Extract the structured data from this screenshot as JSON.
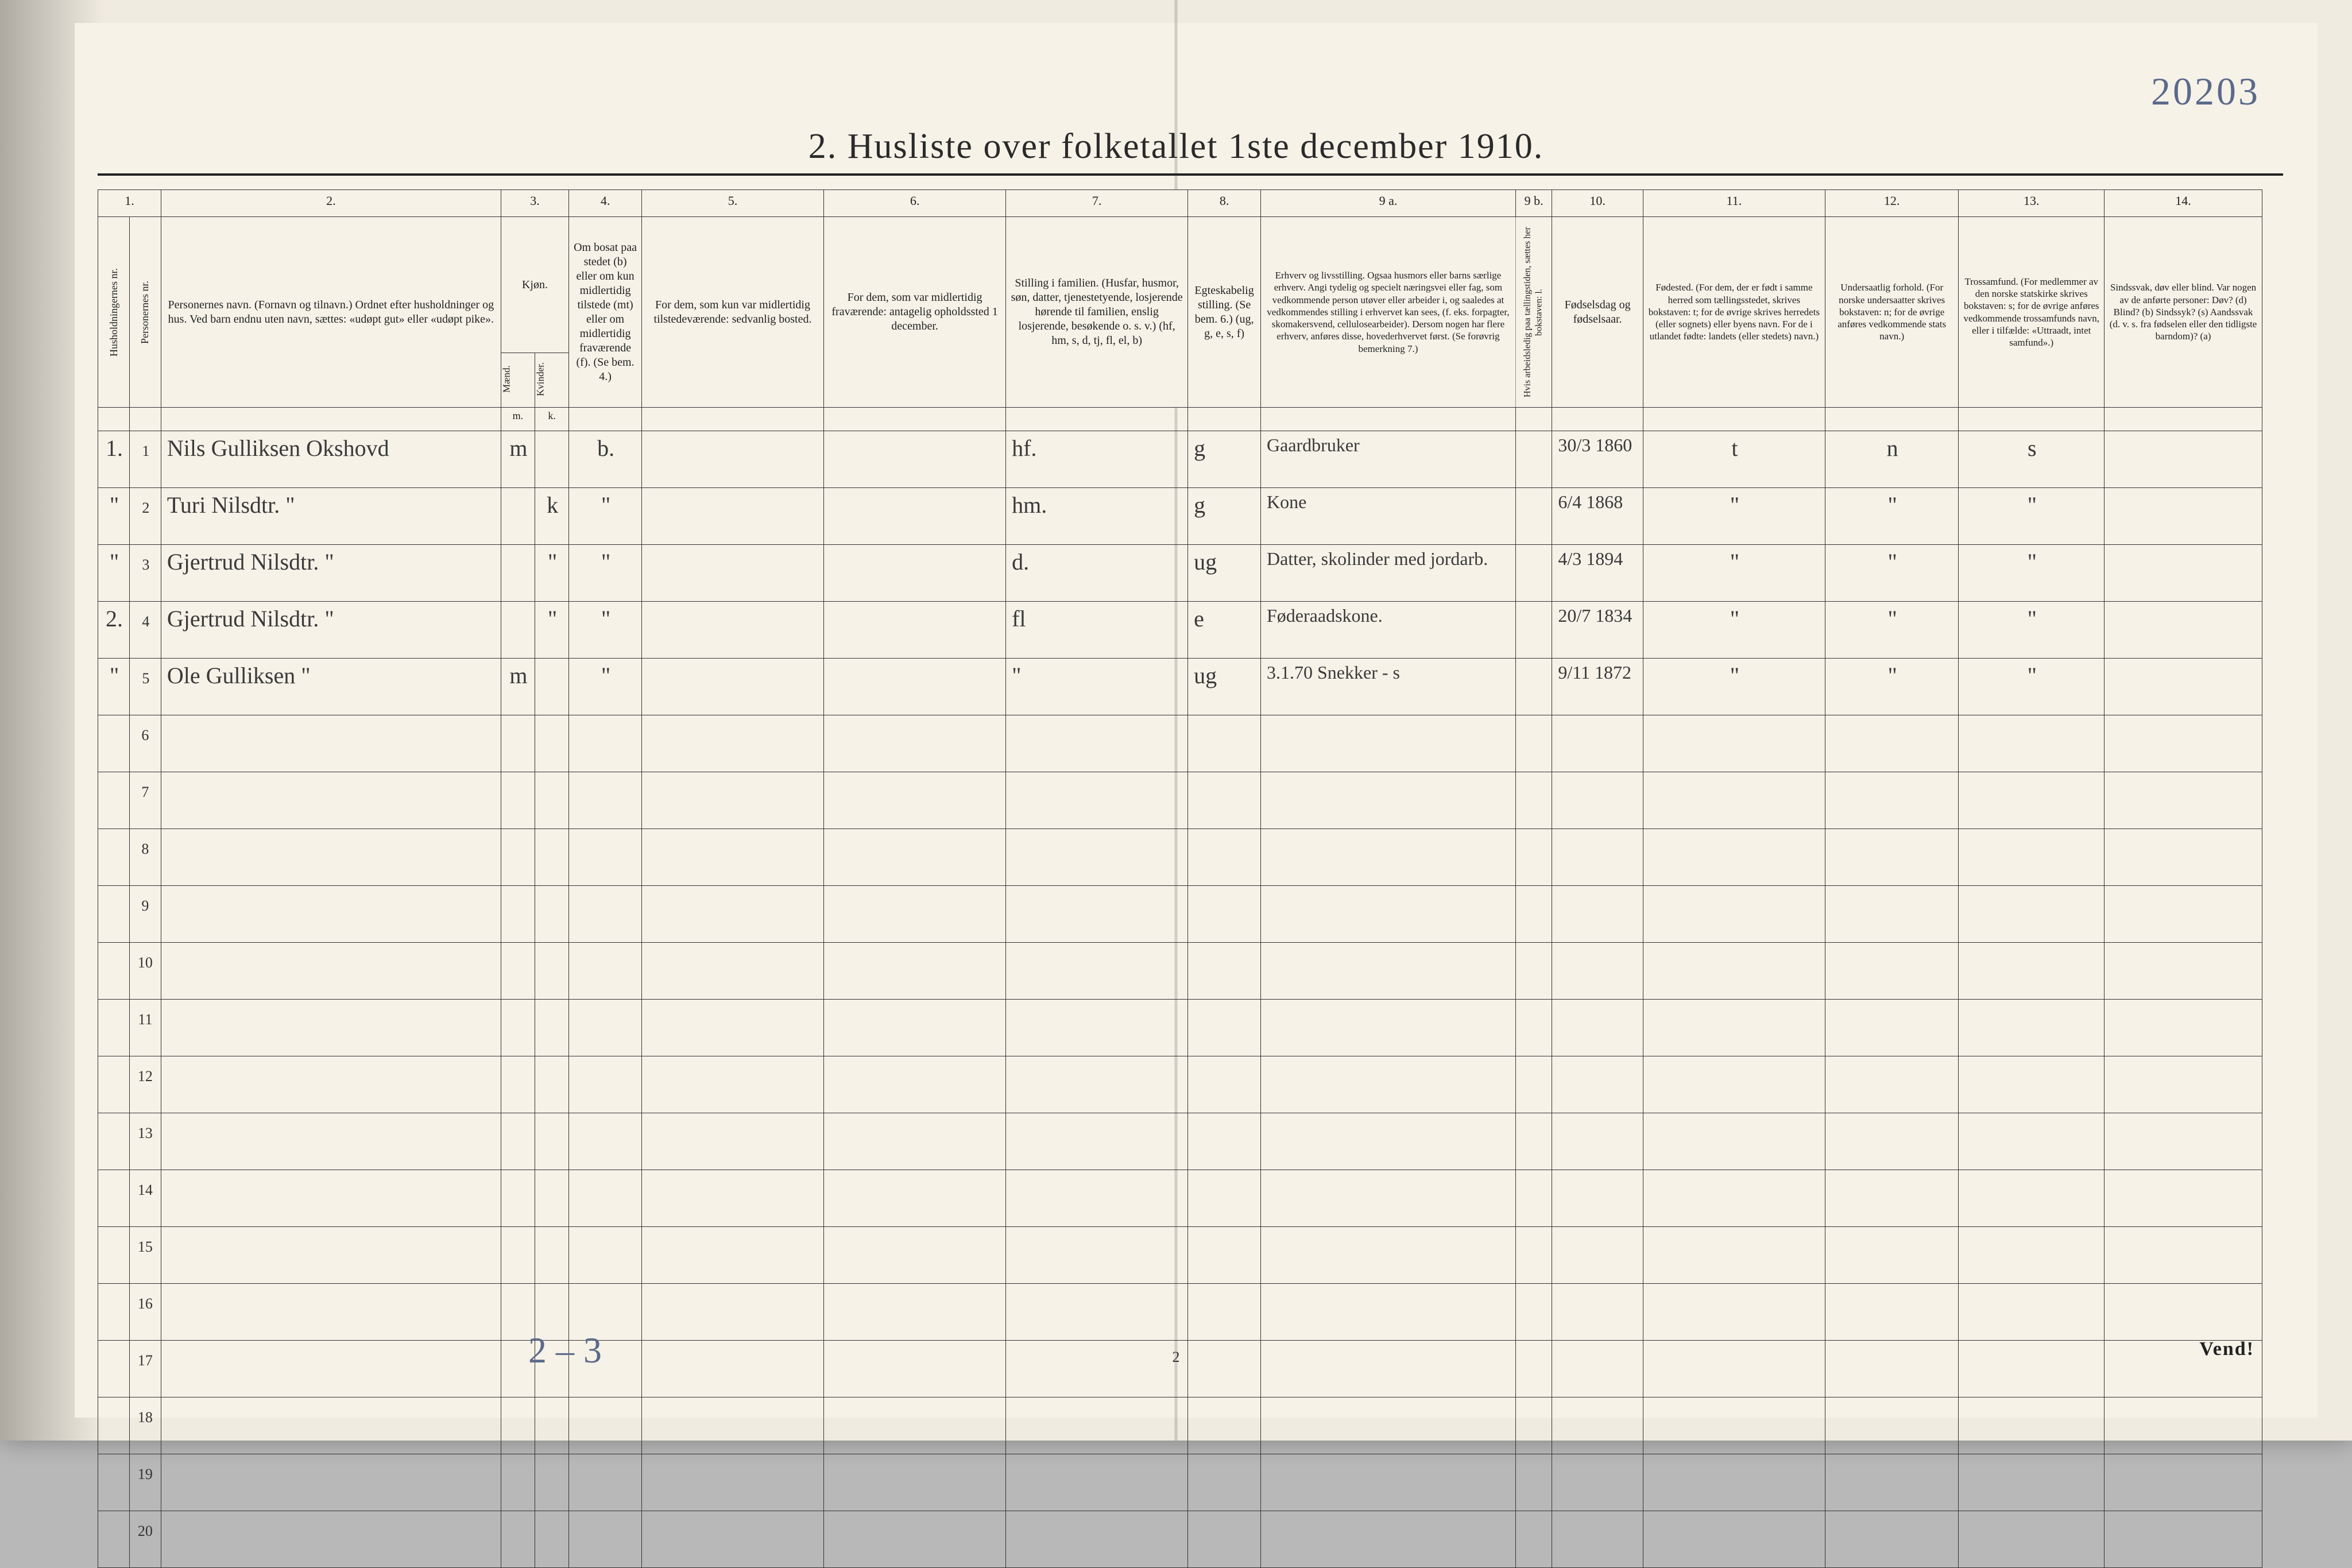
{
  "page": {
    "handwritten_top_right": "20203",
    "title": "2.  Husliste over folketallet 1ste december 1910.",
    "bottom_handwritten": "2 – 3",
    "footer_page_number": "2",
    "vend": "Vend!"
  },
  "columns": {
    "numbers": [
      "1.",
      "",
      "2.",
      "3.",
      "",
      "4.",
      "5.",
      "6.",
      "7.",
      "8.",
      "9 a.",
      "9 b.",
      "10.",
      "11.",
      "12.",
      "13.",
      "14."
    ],
    "labels": [
      "Husholdningernes nr.",
      "Personernes nr.",
      "Personernes navn.\n(Fornavn og tilnavn.)\nOrdnet efter husholdninger og hus.\nVed barn endnu uten navn, sættes: «udøpt gut» eller «udøpt pike».",
      "Kjøn.",
      "",
      "Om bosat paa stedet (b) eller om kun midlertidig tilstede (mt) eller om midlertidig fraværende (f).\n(Se bem. 4.)",
      "For dem, som kun var midlertidig tilstedeværende:\nsedvanlig bosted.",
      "For dem, som var midlertidig fraværende:\nantagelig opholdssted 1 december.",
      "Stilling i familien.\n(Husfar, husmor, søn, datter, tjenestetyende, losjerende hørende til familien, enslig losjerende, besøkende o. s. v.)\n(hf, hm, s, d, tj, fl, el, b)",
      "Egteskabelig stilling.\n(Se bem. 6.)\n(ug, g, e, s, f)",
      "Erhverv og livsstilling.\nOgsaa husmors eller barns særlige erhverv.\nAngi tydelig og specielt næringsvei eller fag, som vedkommende person utøver eller arbeider i, og saaledes at vedkommendes stilling i erhvervet kan sees, (f. eks. forpagter, skomakersvend, cellulosearbeider). Dersom nogen har flere erhverv, anføres disse, hovederhvervet først.\n(Se forøvrig bemerkning 7.)",
      "Hvis arbeidsledig paa tællingstiden, sættes her bokstaven: l.",
      "Fødselsdag og fødselsaar.",
      "Fødested.\n(For dem, der er født i samme herred som tællingsstedet, skrives bokstaven: t; for de øvrige skrives herredets (eller sognets) eller byens navn. For de i utlandet fødte: landets (eller stedets) navn.)",
      "Undersaatlig forhold.\n(For norske undersaatter skrives bokstaven: n; for de øvrige anføres vedkommende stats navn.)",
      "Trossamfund.\n(For medlemmer av den norske statskirke skrives bokstaven: s; for de øvrige anføres vedkommende trossamfunds navn, eller i tilfælde: «Uttraadt, intet samfund».)",
      "Sindssvak, døv eller blind.\nVar nogen av de anførte personer:\nDøv?    (d)\nBlind?    (b)\nSindssyk?  (s)\nAandssvak (d. v. s. fra fødselen eller den tidligste barndom)?  (a)"
    ],
    "sex_sub": [
      "Mænd.",
      "Kvinder."
    ],
    "sex_sub2": [
      "m.",
      "k."
    ]
  },
  "rows": [
    {
      "hh": "1.",
      "pn": "1",
      "name": "Nils Gulliksen Okshovd",
      "m": "m",
      "k": "",
      "res": "b.",
      "temp": "",
      "absent": "",
      "fam": "hf.",
      "marital": "g",
      "occ": "Gaardbruker",
      "wl": "",
      "dob": "30/3 1860",
      "birthplace": "t",
      "nat": "n",
      "rel": "s",
      "dis": ""
    },
    {
      "hh": "\"",
      "pn": "2",
      "name": "Turi Nilsdtr.          \"",
      "m": "",
      "k": "k",
      "res": "\"",
      "temp": "",
      "absent": "",
      "fam": "hm.",
      "marital": "g",
      "occ": "Kone",
      "wl": "",
      "dob": "6/4 1868",
      "birthplace": "\"",
      "nat": "\"",
      "rel": "\"",
      "dis": ""
    },
    {
      "hh": "\"",
      "pn": "3",
      "name": "Gjertrud Nilsdtr.     \"",
      "m": "",
      "k": "\"",
      "res": "\"",
      "temp": "",
      "absent": "",
      "fam": "d.",
      "marital": "ug",
      "occ": "Datter, skolinder med jordarb.",
      "wl": "",
      "dob": "4/3 1894",
      "birthplace": "\"",
      "nat": "\"",
      "rel": "\"",
      "dis": ""
    },
    {
      "hh": "2.",
      "pn": "4",
      "name": "Gjertrud Nilsdtr.     \"",
      "m": "",
      "k": "\"",
      "res": "\"",
      "temp": "",
      "absent": "",
      "fam": "fl",
      "marital": "e",
      "occ": "Føderaadskone.",
      "wl": "",
      "dob": "20/7 1834",
      "birthplace": "\"",
      "nat": "\"",
      "rel": "\"",
      "dis": ""
    },
    {
      "hh": "\"",
      "pn": "5",
      "name": "Ole Gulliksen        \"",
      "m": "m",
      "k": "",
      "res": "\"",
      "temp": "",
      "absent": "",
      "fam": "\"",
      "marital": "ug",
      "occ": "3.1.70  Snekker - s",
      "wl": "",
      "dob": "9/11 1872",
      "birthplace": "\"",
      "nat": "\"",
      "rel": "\"",
      "dis": ""
    }
  ],
  "empty_row_labels": [
    "6",
    "7",
    "8",
    "9",
    "10",
    "11",
    "12",
    "13",
    "14",
    "15",
    "16",
    "17",
    "18",
    "19",
    "20"
  ],
  "colors": {
    "paper": "#f6f2e8",
    "ink": "#2a2a2a",
    "pencil_blue": "#5b6a8a",
    "rule": "#333333"
  }
}
